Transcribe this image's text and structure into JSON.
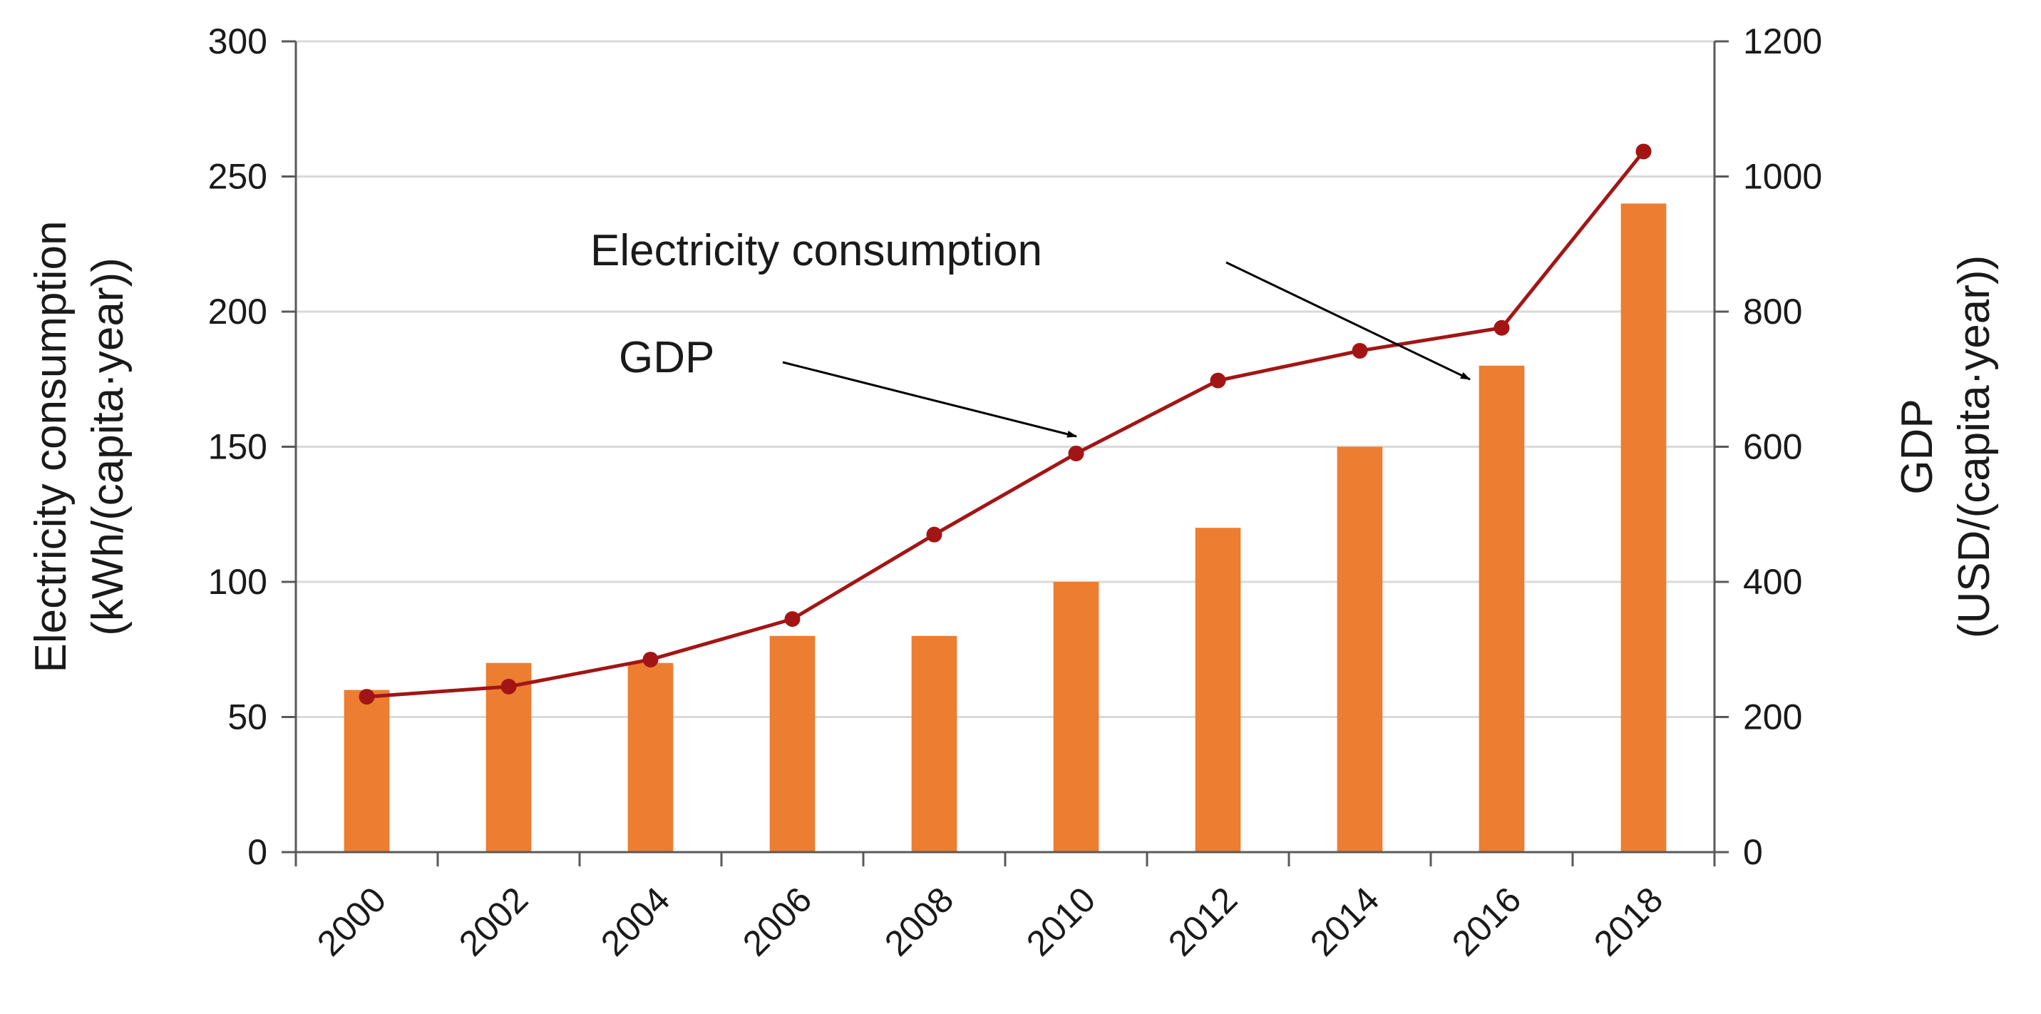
{
  "chart_data": {
    "type": "bar+line",
    "categories": [
      "2000",
      "2002",
      "2004",
      "2006",
      "2008",
      "2010",
      "2012",
      "2014",
      "2016",
      "2018"
    ],
    "series": [
      {
        "name": "Electricity consumption",
        "kind": "bar",
        "axis": "left",
        "color": "#ed7d31",
        "values": [
          60,
          70,
          70,
          80,
          80,
          100,
          120,
          150,
          180,
          240
        ]
      },
      {
        "name": "GDP",
        "kind": "line",
        "axis": "right",
        "color": "#a31515",
        "values": [
          230,
          245,
          285,
          345,
          470,
          590,
          698,
          742,
          776,
          1037
        ]
      }
    ],
    "y_left": {
      "label_line1": "Electricity consumption",
      "label_line2": "(kWh/(capita·year))",
      "min": 0,
      "max": 300,
      "ticks": [
        "0",
        "50",
        "100",
        "150",
        "200",
        "250",
        "300"
      ]
    },
    "y_right": {
      "label_line1": "GDP",
      "label_line2": "(USD/(capita·year))",
      "min": 0,
      "max": 1200,
      "ticks": [
        "0",
        "200",
        "400",
        "600",
        "800",
        "1000",
        "1200"
      ]
    },
    "x_labels": [
      "2000",
      "2002",
      "2004",
      "2006",
      "2008",
      "2010",
      "2012",
      "2014",
      "2016",
      "2018"
    ],
    "grid": true,
    "annotations": {
      "electricity_label": "Electricity consumption",
      "gdp_label": "GDP"
    }
  }
}
